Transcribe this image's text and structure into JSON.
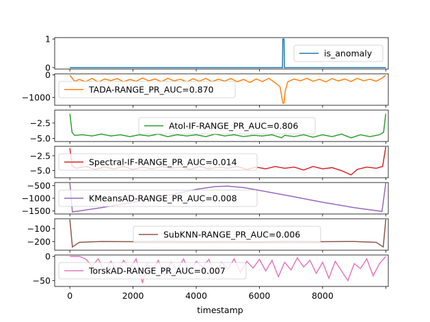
{
  "chart_data": {
    "type": "line",
    "xlabel": "timestamp",
    "xlim": [
      -480,
      10080
    ],
    "x_ticks": [
      0,
      2000,
      4000,
      6000,
      8000,
      10000
    ],
    "x_tick_labels": [
      "0",
      "2000",
      "4000",
      "6000",
      "8000",
      ""
    ],
    "panels": [
      {
        "series_name": "is_anomaly",
        "legend": "is_anomaly",
        "legend_position": "right",
        "color": "#1f77b4",
        "ylim": [
          -0.05,
          1.05
        ],
        "y_ticks": [
          0,
          1
        ],
        "y_tick_labels": [
          "0",
          "1"
        ],
        "points": [
          [
            0,
            0
          ],
          [
            6730,
            0
          ],
          [
            6740,
            1
          ],
          [
            6780,
            1
          ],
          [
            6790,
            0
          ],
          [
            10000,
            0
          ]
        ]
      },
      {
        "series_name": "TADA",
        "legend": "TADA-RANGE_PR_AUC=0.870",
        "legend_position": "left",
        "color": "#ff7f0e",
        "ylim": [
          -1350,
          50
        ],
        "y_ticks": [
          0,
          -1000
        ],
        "y_tick_labels": [
          "0",
          "−1000"
        ],
        "points": [
          [
            0,
            -10
          ],
          [
            150,
            -280
          ],
          [
            300,
            -200
          ],
          [
            500,
            -300
          ],
          [
            700,
            -150
          ],
          [
            900,
            -320
          ],
          [
            1100,
            -180
          ],
          [
            1300,
            -250
          ],
          [
            1500,
            -160
          ],
          [
            1700,
            -300
          ],
          [
            1900,
            -200
          ],
          [
            2100,
            -280
          ],
          [
            2300,
            -140
          ],
          [
            2500,
            -260
          ],
          [
            2700,
            -180
          ],
          [
            2900,
            -300
          ],
          [
            3100,
            -150
          ],
          [
            3300,
            -260
          ],
          [
            3500,
            -190
          ],
          [
            3700,
            -310
          ],
          [
            3900,
            -170
          ],
          [
            4100,
            -280
          ],
          [
            4300,
            -150
          ],
          [
            4500,
            -300
          ],
          [
            4700,
            -190
          ],
          [
            4900,
            -270
          ],
          [
            5100,
            -160
          ],
          [
            5300,
            -300
          ],
          [
            5500,
            -200
          ],
          [
            5700,
            -330
          ],
          [
            5900,
            -180
          ],
          [
            6100,
            -290
          ],
          [
            6300,
            -150
          ],
          [
            6500,
            -350
          ],
          [
            6650,
            -520
          ],
          [
            6700,
            -900
          ],
          [
            6740,
            -1250
          ],
          [
            6780,
            -1250
          ],
          [
            6820,
            -700
          ],
          [
            6900,
            -300
          ],
          [
            7100,
            -180
          ],
          [
            7300,
            -260
          ],
          [
            7500,
            -150
          ],
          [
            7700,
            -280
          ],
          [
            7900,
            -190
          ],
          [
            8100,
            -310
          ],
          [
            8300,
            -160
          ],
          [
            8500,
            -270
          ],
          [
            8700,
            -180
          ],
          [
            8900,
            -290
          ],
          [
            9100,
            -150
          ],
          [
            9300,
            -260
          ],
          [
            9500,
            -190
          ],
          [
            9700,
            -280
          ],
          [
            9900,
            -120
          ],
          [
            10000,
            -10
          ]
        ]
      },
      {
        "series_name": "Atol-IF",
        "legend": "Atol-IF-RANGE_PR_AUC=0.806",
        "legend_position": "center",
        "color": "#2ca02c",
        "ylim": [
          -5.5,
          -0.4
        ],
        "y_ticks": [
          -2.5,
          -5.0
        ],
        "y_tick_labels": [
          "−2.5",
          "−5.0"
        ],
        "points": [
          [
            0,
            -1.0
          ],
          [
            70,
            -4.0
          ],
          [
            150,
            -4.5
          ],
          [
            400,
            -4.4
          ],
          [
            700,
            -4.6
          ],
          [
            1000,
            -4.3
          ],
          [
            1300,
            -4.6
          ],
          [
            1600,
            -4.4
          ],
          [
            1900,
            -4.7
          ],
          [
            2200,
            -4.4
          ],
          [
            2500,
            -4.6
          ],
          [
            2800,
            -4.3
          ],
          [
            3100,
            -4.7
          ],
          [
            3400,
            -4.4
          ],
          [
            3700,
            -4.6
          ],
          [
            4000,
            -4.4
          ],
          [
            4300,
            -4.7
          ],
          [
            4600,
            -4.3
          ],
          [
            4900,
            -4.6
          ],
          [
            5200,
            -4.4
          ],
          [
            5500,
            -4.7
          ],
          [
            5800,
            -4.5
          ],
          [
            6100,
            -4.6
          ],
          [
            6400,
            -4.4
          ],
          [
            6700,
            -4.9
          ],
          [
            6800,
            -4.5
          ],
          [
            7100,
            -4.7
          ],
          [
            7400,
            -4.4
          ],
          [
            7700,
            -4.8
          ],
          [
            8000,
            -4.4
          ],
          [
            8300,
            -4.7
          ],
          [
            8600,
            -4.3
          ],
          [
            8900,
            -4.9
          ],
          [
            9200,
            -4.4
          ],
          [
            9500,
            -4.7
          ],
          [
            9800,
            -4.4
          ],
          [
            9930,
            -4.0
          ],
          [
            10000,
            -1.0
          ]
        ]
      },
      {
        "series_name": "Spectral-IF",
        "legend": "Spectral-IF-RANGE_PR_AUC=0.014",
        "legend_position": "left",
        "color": "#d62728",
        "ylim": [
          -6.2,
          -0.9
        ],
        "y_ticks": [
          -2.5,
          -5.0
        ],
        "y_tick_labels": [
          "−2.5",
          "−5.0"
        ],
        "points": [
          [
            0,
            -1.2
          ],
          [
            70,
            -4.2
          ],
          [
            200,
            -4.6
          ],
          [
            500,
            -4.3
          ],
          [
            800,
            -4.8
          ],
          [
            1100,
            -4.4
          ],
          [
            1400,
            -4.7
          ],
          [
            1700,
            -4.3
          ],
          [
            2000,
            -4.8
          ],
          [
            2300,
            -4.4
          ],
          [
            2600,
            -4.7
          ],
          [
            2900,
            -4.3
          ],
          [
            3200,
            -4.6
          ],
          [
            3500,
            -4.4
          ],
          [
            3800,
            -4.8
          ],
          [
            4100,
            -4.3
          ],
          [
            4400,
            -4.7
          ],
          [
            4700,
            -4.4
          ],
          [
            5000,
            -4.6
          ],
          [
            5300,
            -4.3
          ],
          [
            5600,
            -4.8
          ],
          [
            5900,
            -4.4
          ],
          [
            6200,
            -4.7
          ],
          [
            6500,
            -4.3
          ],
          [
            6800,
            -4.6
          ],
          [
            7100,
            -4.4
          ],
          [
            7400,
            -4.9
          ],
          [
            7700,
            -4.3
          ],
          [
            8000,
            -4.7
          ],
          [
            8300,
            -4.5
          ],
          [
            8600,
            -5.0
          ],
          [
            8900,
            -5.7
          ],
          [
            9100,
            -4.8
          ],
          [
            9400,
            -4.4
          ],
          [
            9700,
            -4.6
          ],
          [
            9900,
            -4.3
          ],
          [
            10000,
            -1.0
          ]
        ]
      },
      {
        "series_name": "KMeansAD",
        "legend": "KMeansAD-RANGE_PR_AUC=0.008",
        "legend_position": "left",
        "color": "#9467bd",
        "ylim": [
          -1620,
          -380
        ],
        "y_ticks": [
          -500,
          -1000,
          -1500
        ],
        "y_tick_labels": [
          "−500",
          "−1000",
          "−1500"
        ],
        "points": [
          [
            0,
            -400
          ],
          [
            80,
            -1540
          ],
          [
            1000,
            -1370
          ],
          [
            2000,
            -1160
          ],
          [
            3000,
            -910
          ],
          [
            4000,
            -650
          ],
          [
            4600,
            -540
          ],
          [
            5000,
            -520
          ],
          [
            5500,
            -580
          ],
          [
            6000,
            -690
          ],
          [
            7000,
            -920
          ],
          [
            8000,
            -1160
          ],
          [
            9000,
            -1370
          ],
          [
            9880,
            -1520
          ],
          [
            10000,
            -400
          ]
        ]
      },
      {
        "series_name": "SubKNN",
        "legend": "SubKNN-RANGE_PR_AUC=0.006",
        "legend_position": "center",
        "color": "#8c564b",
        "ylim": [
          -265,
          -25
        ],
        "y_ticks": [
          -100,
          -200
        ],
        "y_tick_labels": [
          "−100",
          "−200"
        ],
        "points": [
          [
            0,
            -30
          ],
          [
            80,
            -240
          ],
          [
            300,
            -205
          ],
          [
            1000,
            -198
          ],
          [
            2000,
            -200
          ],
          [
            3000,
            -197
          ],
          [
            4000,
            -200
          ],
          [
            5000,
            -198
          ],
          [
            6000,
            -201
          ],
          [
            7000,
            -197
          ],
          [
            8000,
            -200
          ],
          [
            9000,
            -198
          ],
          [
            9700,
            -205
          ],
          [
            9920,
            -240
          ],
          [
            10000,
            -30
          ]
        ]
      },
      {
        "series_name": "TorskAD",
        "legend": "TorskAD-RANGE_PR_AUC=0.007",
        "legend_position": "left",
        "color": "#e377c2",
        "ylim": [
          -62,
          3
        ],
        "y_ticks": [
          0,
          -50
        ],
        "y_tick_labels": [
          "0",
          "−50"
        ],
        "points": [
          [
            0,
            0
          ],
          [
            300,
            0
          ],
          [
            500,
            -5
          ],
          [
            700,
            -20
          ],
          [
            900,
            -5
          ],
          [
            1100,
            -30
          ],
          [
            1300,
            -10
          ],
          [
            1500,
            -35
          ],
          [
            1700,
            -8
          ],
          [
            1900,
            -25
          ],
          [
            2100,
            -5
          ],
          [
            2300,
            -55
          ],
          [
            2450,
            -15
          ],
          [
            2600,
            -30
          ],
          [
            2800,
            -8
          ],
          [
            3000,
            -40
          ],
          [
            3200,
            -12
          ],
          [
            3400,
            -28
          ],
          [
            3600,
            -5
          ],
          [
            3800,
            -35
          ],
          [
            4000,
            -10
          ],
          [
            4200,
            -22
          ],
          [
            4400,
            -6
          ],
          [
            4600,
            -38
          ],
          [
            4800,
            -12
          ],
          [
            5000,
            -26
          ],
          [
            5200,
            -5
          ],
          [
            5400,
            -33
          ],
          [
            5600,
            -10
          ],
          [
            5800,
            -24
          ],
          [
            6000,
            -6
          ],
          [
            6200,
            -30
          ],
          [
            6400,
            -8
          ],
          [
            6600,
            -42
          ],
          [
            6800,
            -12
          ],
          [
            7000,
            -28
          ],
          [
            7200,
            -3
          ],
          [
            7400,
            -22
          ],
          [
            7600,
            -8
          ],
          [
            7800,
            -35
          ],
          [
            8000,
            -12
          ],
          [
            8200,
            -45
          ],
          [
            8400,
            -10
          ],
          [
            8600,
            -30
          ],
          [
            8800,
            -50
          ],
          [
            9000,
            -15
          ],
          [
            9200,
            -25
          ],
          [
            9400,
            -5
          ],
          [
            9600,
            -40
          ],
          [
            9800,
            -15
          ],
          [
            10000,
            0
          ]
        ]
      }
    ]
  }
}
